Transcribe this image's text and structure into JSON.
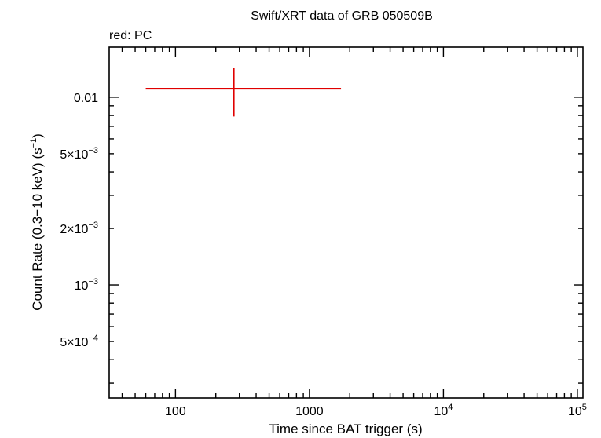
{
  "chart_data": {
    "type": "scatter",
    "title": "Swift/XRT data of GRB 050509B",
    "subtitle": "red: PC",
    "xlabel": "Time since BAT trigger (s)",
    "ylabel_main": "Count Rate (0.3−10 keV) (s",
    "ylabel_sup": "−1",
    "ylabel_tail": ")",
    "x_scale": "log",
    "y_scale": "log",
    "xlim": [
      32,
      110000
    ],
    "ylim": [
      0.00025,
      0.0185
    ],
    "x_ticks": [
      {
        "value": 100,
        "base": "100",
        "sup": ""
      },
      {
        "value": 1000,
        "base": "1000",
        "sup": ""
      },
      {
        "value": 10000,
        "base": "10",
        "sup": "4"
      },
      {
        "value": 100000,
        "base": "10",
        "sup": "5"
      }
    ],
    "y_ticks": [
      {
        "value": 0.01,
        "base": "0.01",
        "sup": ""
      },
      {
        "value": 0.005,
        "base": "5×10",
        "sup": "−3"
      },
      {
        "value": 0.002,
        "base": "2×10",
        "sup": "−3"
      },
      {
        "value": 0.001,
        "base": "10",
        "sup": "−3"
      },
      {
        "value": 0.0005,
        "base": "5×10",
        "sup": "−4"
      }
    ],
    "series": [
      {
        "color": "#e00000",
        "points": [
          {
            "x": 272,
            "y": 0.0111,
            "x_low": 60,
            "x_high": 1720,
            "y_low": 0.0079,
            "y_high": 0.0144
          }
        ]
      }
    ]
  }
}
